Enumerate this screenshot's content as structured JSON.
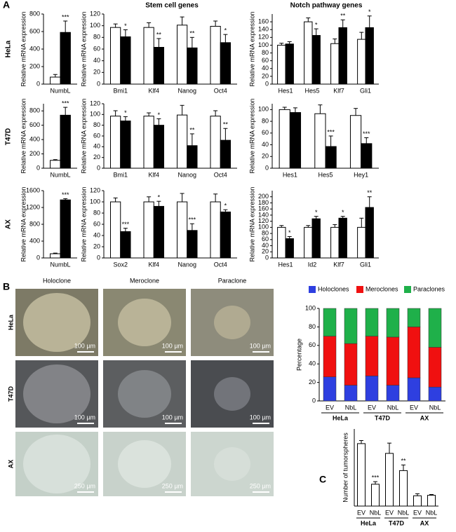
{
  "panels": {
    "a": "A",
    "b": "B",
    "c": "C",
    "stem_title": "Stem cell genes",
    "notch_title": "Notch pathway genes",
    "row_labels": [
      "HeLa",
      "T47D",
      "AX"
    ]
  },
  "micrographs": {
    "columns": [
      "Holoclone",
      "Meroclone",
      "Paraclone"
    ],
    "rows": [
      "HeLa",
      "T47D",
      "AX"
    ],
    "scale_bars": [
      [
        "100 µm",
        "100 µm",
        "100 µm"
      ],
      [
        "100 µm",
        "100 µm",
        "100 µm"
      ],
      [
        "250 µm",
        "250 µm",
        "250 µm"
      ]
    ]
  },
  "chart_data": [
    {
      "type": "bar",
      "ylabel": "Relative mRNA expression",
      "categories": [
        "NumbL"
      ],
      "ylim": [
        0,
        800
      ],
      "yticks": [
        0,
        200,
        400,
        600,
        800
      ],
      "series": [
        {
          "color": "#ffffff",
          "values": [
            80
          ],
          "errors": [
            30
          ]
        },
        {
          "color": "#000000",
          "values": [
            590
          ],
          "errors": [
            130
          ]
        }
      ],
      "stars": [
        "***"
      ]
    },
    {
      "type": "bar",
      "ylabel": "Relative mRNA expression",
      "categories": [
        "Bmi1",
        "Klf4",
        "Nanog",
        "Oct4"
      ],
      "ylim": [
        0,
        120
      ],
      "yticks": [
        0,
        20,
        40,
        60,
        80,
        100,
        120
      ],
      "series": [
        {
          "color": "#ffffff",
          "values": [
            97,
            97,
            101,
            99
          ],
          "errors": [
            6,
            8,
            14,
            9
          ]
        },
        {
          "color": "#000000",
          "values": [
            81,
            63,
            62,
            71
          ],
          "errors": [
            12,
            15,
            18,
            14
          ]
        }
      ],
      "stars": [
        "*",
        "**",
        "**",
        "*"
      ]
    },
    {
      "type": "bar",
      "ylabel": "Relative mRNA expression",
      "categories": [
        "Hes1",
        "Hes5",
        "Klf7",
        "Gli1"
      ],
      "ylim": [
        0,
        180
      ],
      "yticks": [
        0,
        20,
        40,
        60,
        80,
        100,
        120,
        140,
        160
      ],
      "series": [
        {
          "color": "#ffffff",
          "values": [
            100,
            160,
            104,
            115
          ],
          "errors": [
            5,
            10,
            12,
            18
          ]
        },
        {
          "color": "#000000",
          "values": [
            103,
            125,
            145,
            145
          ],
          "errors": [
            6,
            17,
            20,
            30
          ]
        }
      ],
      "stars": [
        null,
        "*",
        "**",
        "*"
      ]
    },
    {
      "type": "bar",
      "ylabel": "Relative mRNA expression",
      "categories": [
        "NumbL"
      ],
      "ylim": [
        0,
        900
      ],
      "yticks": [
        0,
        200,
        400,
        600,
        800
      ],
      "series": [
        {
          "color": "#ffffff",
          "values": [
            110
          ],
          "errors": [
            10
          ]
        },
        {
          "color": "#000000",
          "values": [
            740
          ],
          "errors": [
            110
          ]
        }
      ],
      "stars": [
        "***"
      ]
    },
    {
      "type": "bar",
      "ylabel": "Relative mRNA expression",
      "categories": [
        "Bmi1",
        "Klf4",
        "Nanog",
        "Oct4"
      ],
      "ylim": [
        0,
        120
      ],
      "yticks": [
        0,
        20,
        40,
        60,
        80,
        100,
        120
      ],
      "series": [
        {
          "color": "#ffffff",
          "values": [
            97,
            97,
            99,
            97
          ],
          "errors": [
            10,
            6,
            18,
            10
          ]
        },
        {
          "color": "#000000",
          "values": [
            88,
            80,
            42,
            52
          ],
          "errors": [
            8,
            12,
            22,
            22
          ]
        }
      ],
      "stars": [
        "*",
        "*",
        "**",
        "**"
      ]
    },
    {
      "type": "bar",
      "ylabel": "Relative mRNA expression",
      "categories": [
        "Hes1",
        "Hes5",
        "Hey1"
      ],
      "ylim": [
        0,
        110
      ],
      "yticks": [
        0,
        20,
        40,
        60,
        80,
        100
      ],
      "series": [
        {
          "color": "#ffffff",
          "values": [
            100,
            93,
            90
          ],
          "errors": [
            4,
            15,
            12
          ]
        },
        {
          "color": "#000000",
          "values": [
            95,
            37,
            42
          ],
          "errors": [
            8,
            18,
            10
          ]
        }
      ],
      "stars": [
        null,
        "***",
        "***"
      ]
    },
    {
      "type": "bar",
      "ylabel": "Relative mRNA expression",
      "categories": [
        "NumbL"
      ],
      "ylim": [
        0,
        1600
      ],
      "yticks": [
        0,
        400,
        800,
        1200,
        1600
      ],
      "series": [
        {
          "color": "#ffffff",
          "values": [
            100
          ],
          "errors": [
            15
          ]
        },
        {
          "color": "#000000",
          "values": [
            1380
          ],
          "errors": [
            30
          ]
        }
      ],
      "stars": [
        "***"
      ]
    },
    {
      "type": "bar",
      "ylabel": "Relative mRNA expression",
      "categories": [
        "Sox2",
        "Klf4",
        "Nanog",
        "Oct4"
      ],
      "ylim": [
        0,
        120
      ],
      "yticks": [
        0,
        20,
        40,
        60,
        80,
        100,
        120
      ],
      "series": [
        {
          "color": "#ffffff",
          "values": [
            100,
            100,
            100,
            100
          ],
          "errors": [
            7,
            9,
            15,
            14
          ]
        },
        {
          "color": "#000000",
          "values": [
            47,
            92,
            49,
            82
          ],
          "errors": [
            6,
            9,
            12,
            4
          ]
        }
      ],
      "stars": [
        "***",
        "*",
        "***",
        "*"
      ]
    },
    {
      "type": "bar",
      "ylabel": "Relative mRNA expression",
      "categories": [
        "Hes1",
        "Id2",
        "Klf7",
        "Gli1"
      ],
      "ylim": [
        0,
        220
      ],
      "yticks": [
        0,
        20,
        40,
        60,
        80,
        100,
        120,
        140,
        160,
        180,
        200
      ],
      "series": [
        {
          "color": "#ffffff",
          "values": [
            100,
            100,
            100,
            100
          ],
          "errors": [
            6,
            6,
            9,
            30
          ]
        },
        {
          "color": "#000000",
          "values": [
            63,
            128,
            130,
            165
          ],
          "errors": [
            7,
            8,
            6,
            35
          ]
        }
      ],
      "stars": [
        "*",
        "*",
        "*",
        "**"
      ]
    },
    {
      "type": "stacked_bar",
      "ylabel": "Percentage",
      "categories": [
        "EV",
        "NbL",
        "EV",
        "NbL",
        "EV",
        "NbL"
      ],
      "group_labels": [
        "HeLa",
        "T47D",
        "AX"
      ],
      "ylim": [
        0,
        100
      ],
      "yticks": [
        0,
        20,
        40,
        60,
        80,
        100
      ],
      "legend": "top",
      "series": [
        {
          "name": "Holoclones",
          "color": "#2e3fe0",
          "values": [
            26,
            17,
            27,
            17,
            25,
            15
          ]
        },
        {
          "name": "Meroclones",
          "color": "#f01010",
          "values": [
            44,
            45,
            43,
            52,
            55,
            43
          ]
        },
        {
          "name": "Paraclones",
          "color": "#1fb04a",
          "values": [
            30,
            38,
            30,
            31,
            20,
            42
          ]
        }
      ]
    },
    {
      "type": "bar",
      "ylabel": "Number of tumorspheres",
      "categories": [
        "EV",
        "NbL",
        "EV",
        "NbL",
        "EV",
        "NbL"
      ],
      "group_labels": [
        "HeLa",
        "T47D",
        "AX"
      ],
      "ylim": [
        0,
        300
      ],
      "series": [
        {
          "color": "#ffffff",
          "values": [
            243,
            85,
            205,
            138,
            40,
            42
          ],
          "errors": [
            12,
            10,
            40,
            22,
            8,
            3
          ]
        }
      ],
      "stars": [
        null,
        "***",
        null,
        "**",
        null,
        null
      ]
    }
  ]
}
